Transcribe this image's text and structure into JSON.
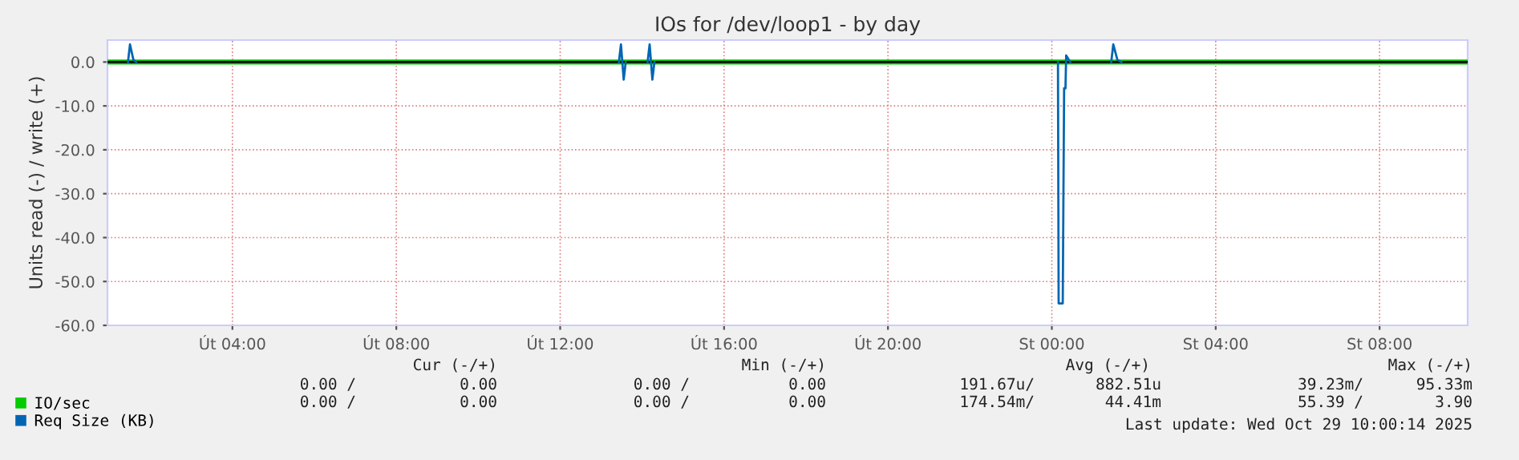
{
  "chart_data": {
    "type": "line",
    "title": "IOs for /dev/loop1 - by day",
    "ylabel": "Units read (-) / write (+)",
    "xlim": [
      "2025-10-28T00:57",
      "2025-10-29T10:09"
    ],
    "xticks": [
      {
        "value": "2025-10-28T04:00",
        "label": "Út 04:00"
      },
      {
        "value": "2025-10-28T08:00",
        "label": "Út 08:00"
      },
      {
        "value": "2025-10-28T12:00",
        "label": "Út 12:00"
      },
      {
        "value": "2025-10-28T16:00",
        "label": "Út 16:00"
      },
      {
        "value": "2025-10-28T20:00",
        "label": "Út 20:00"
      },
      {
        "value": "2025-10-29T00:00",
        "label": "St 00:00"
      },
      {
        "value": "2025-10-29T04:00",
        "label": "St 04:00"
      },
      {
        "value": "2025-10-29T08:00",
        "label": "St 08:00"
      }
    ],
    "ylim": [
      -60,
      5
    ],
    "yticks": [
      {
        "value": -60,
        "label": "-60.0"
      },
      {
        "value": -50,
        "label": "-50.0"
      },
      {
        "value": -40,
        "label": "-40.0"
      },
      {
        "value": -30,
        "label": "-30.0"
      },
      {
        "value": -20,
        "label": "-20.0"
      },
      {
        "value": -10,
        "label": "-10.0"
      },
      {
        "value": 0,
        "label": "0.0"
      }
    ],
    "grid": true,
    "legend": "bottom left",
    "line_style": "solid",
    "marker": "none",
    "ref_lines": [
      {
        "axis": "y",
        "value": 0,
        "color": "#000000"
      }
    ],
    "series": [
      {
        "name": "IO/sec",
        "color": "#00cc00",
        "x": [
          "2025-10-28T00:57",
          "2025-10-29T10:09"
        ],
        "values": [
          0,
          0
        ]
      },
      {
        "name": "Req Size (KB)",
        "color": "#0066b3",
        "x": [
          "2025-10-28T01:27",
          "2025-10-28T01:30",
          "2025-10-28T01:35",
          "2025-10-28T01:39",
          "2025-10-28T07:00",
          "2025-10-28T13:26",
          "2025-10-28T13:29",
          "2025-10-28T13:31",
          "2025-10-28T13:33",
          "2025-10-28T13:36",
          "2025-10-28T13:50",
          "2025-10-28T14:08",
          "2025-10-28T14:11",
          "2025-10-28T14:13",
          "2025-10-28T14:15",
          "2025-10-28T14:18",
          "2025-10-28T20:00",
          "2025-10-29T00:09",
          "2025-10-29T00:10",
          "2025-10-29T00:16",
          "2025-10-29T00:18",
          "2025-10-29T00:20",
          "2025-10-29T00:21",
          "2025-10-29T00:27",
          "2025-10-29T01:00",
          "2025-10-29T01:27",
          "2025-10-29T01:30",
          "2025-10-29T01:36",
          "2025-10-29T01:42"
        ],
        "values": [
          0,
          4,
          0.5,
          0,
          null,
          0,
          4,
          0,
          -4,
          0,
          null,
          0,
          4,
          0,
          -4,
          0,
          null,
          0,
          -55,
          -55,
          -6,
          -6,
          1.5,
          0,
          null,
          0,
          4,
          0.5,
          0
        ]
      }
    ],
    "annotations": [
      "Cur (-/+)",
      "Min (-/+)",
      "Avg (-/+)",
      "Max (-/+)",
      "0.00 /",
      "0.00",
      "0.00 /",
      "0.00",
      "191.67u/",
      "882.51u",
      "39.23m/",
      "95.33m",
      "0.00 /",
      "0.00",
      "0.00 /",
      "0.00",
      "174.54m/",
      "44.41m",
      "55.39 /",
      "3.90",
      "Last update: Wed Oct 29 10:00:14 2025"
    ]
  }
}
